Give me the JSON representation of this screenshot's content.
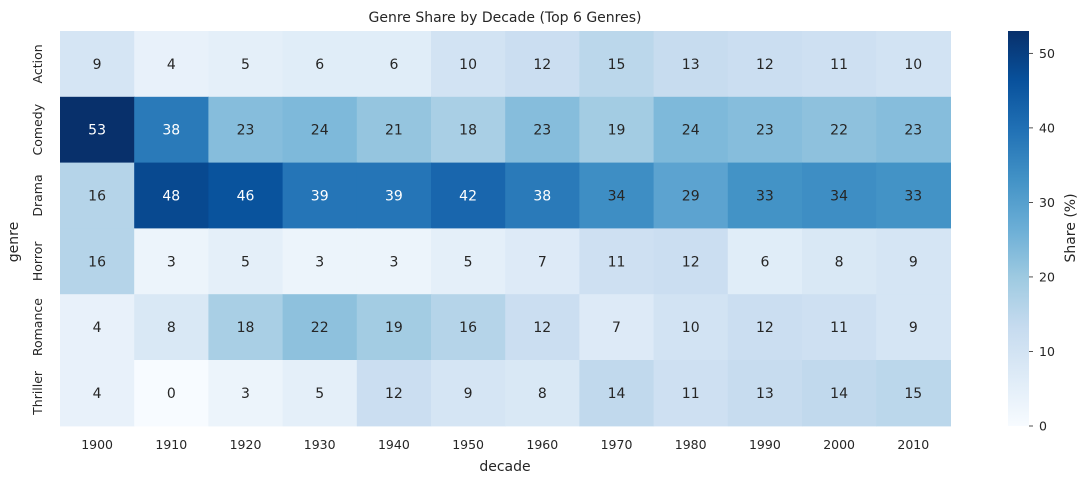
{
  "chart_data": {
    "type": "heatmap",
    "title": "Genre Share by Decade (Top 6 Genres)",
    "xlabel": "decade",
    "ylabel": "genre",
    "x": [
      "1900",
      "1910",
      "1920",
      "1930",
      "1940",
      "1950",
      "1960",
      "1970",
      "1980",
      "1990",
      "2000",
      "2010"
    ],
    "y": [
      "Action",
      "Comedy",
      "Drama",
      "Horror",
      "Romance",
      "Thriller"
    ],
    "values": [
      [
        9,
        4,
        5,
        6,
        6,
        10,
        12,
        15,
        13,
        12,
        11,
        10
      ],
      [
        53,
        38,
        23,
        24,
        21,
        18,
        23,
        19,
        24,
        23,
        22,
        23
      ],
      [
        16,
        48,
        46,
        39,
        39,
        42,
        38,
        34,
        29,
        33,
        34,
        33
      ],
      [
        16,
        3,
        5,
        3,
        3,
        5,
        7,
        11,
        12,
        6,
        8,
        9
      ],
      [
        4,
        8,
        18,
        22,
        19,
        16,
        12,
        7,
        10,
        12,
        11,
        9
      ],
      [
        4,
        0,
        3,
        5,
        12,
        9,
        8,
        14,
        11,
        13,
        14,
        15
      ]
    ],
    "colormap": "Blues",
    "colorbar": {
      "label": "Share (%)",
      "range": [
        0,
        53
      ],
      "ticks": [
        "0",
        "10",
        "20",
        "30",
        "40",
        "50"
      ]
    },
    "grid": false
  }
}
